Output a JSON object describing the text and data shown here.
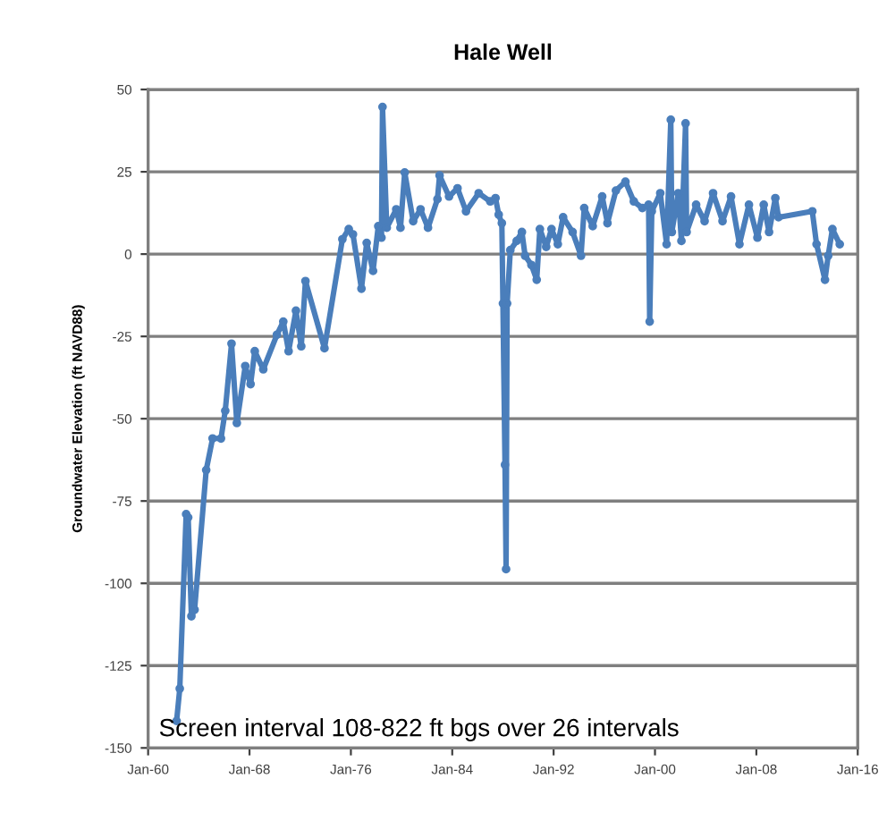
{
  "chart_data": {
    "type": "line",
    "title": "Hale Well",
    "ylabel": "Groundwater Elevation (ft NAVD88)",
    "annotations": [
      "Screen interval 108-822 ft bgs over 26 intervals"
    ],
    "x": [
      "1962-04",
      "1962-07",
      "1963-01",
      "1963-03",
      "1963-06",
      "1963-09",
      "1964-08",
      "1965-02",
      "1965-10",
      "1966-02",
      "1966-08",
      "1967-01",
      "1967-09",
      "1968-02",
      "1968-06",
      "1969-02",
      "1970-03",
      "1970-09",
      "1971-02",
      "1971-09",
      "1972-02",
      "1972-06",
      "1973-12",
      "1975-05",
      "1975-11",
      "1976-03",
      "1976-11",
      "1977-04",
      "1977-10",
      "1978-03",
      "1978-06",
      "1978-07",
      "1978-11",
      "1979-08",
      "1979-12",
      "1980-04",
      "1980-12",
      "1981-07",
      "1982-02",
      "1982-11",
      "1983-01",
      "1983-10",
      "1984-06",
      "1985-02",
      "1986-02",
      "1987-01",
      "1987-06",
      "1987-09",
      "1987-12",
      "1988-01",
      "1988-03",
      "1988-04",
      "1988-05",
      "1988-08",
      "1989-02",
      "1989-07",
      "1989-10",
      "1990-04",
      "1990-09",
      "1990-12",
      "1991-06",
      "1991-11",
      "1992-05",
      "1992-10",
      "1993-07",
      "1994-03",
      "1994-06",
      "1995-02",
      "1995-11",
      "1996-04",
      "1996-12",
      "1997-09",
      "1998-05",
      "1999-01",
      "1999-07",
      "1999-08",
      "1999-10",
      "2000-06",
      "2000-12",
      "2001-04",
      "2001-05",
      "2001-11",
      "2002-02",
      "2002-06",
      "2002-07",
      "2003-04",
      "2003-12",
      "2004-08",
      "2005-05",
      "2006-01",
      "2006-09",
      "2007-06",
      "2008-02",
      "2008-08",
      "2009-01",
      "2009-07",
      "2009-10",
      "2012-06",
      "2012-10",
      "2013-06",
      "2013-09",
      "2014-01",
      "2014-08"
    ],
    "series": [
      {
        "color": "#4a7ebb",
        "values": [
          -141.8,
          -132,
          -79,
          -80,
          -110,
          -108,
          -65.6,
          -56,
          -56,
          -47.6,
          -27.2,
          -51.3,
          -34,
          -39.5,
          -29.5,
          -35,
          -24.5,
          -20.5,
          -29.5,
          -17.2,
          -28,
          -8.2,
          -28.6,
          4.5,
          7.6,
          6,
          -10.5,
          3.4,
          -5.1,
          8.5,
          5,
          44.7,
          8,
          13.6,
          8,
          24.8,
          10,
          13.6,
          8,
          16.7,
          23.9,
          17.5,
          20,
          13,
          18.5,
          16,
          17,
          12,
          9.4,
          -15,
          -64,
          -95.7,
          -15,
          1.2,
          4,
          6.7,
          -0.5,
          -3.3,
          -7.8,
          7.6,
          2.2,
          7.6,
          3,
          11.2,
          6.7,
          -0.5,
          14,
          8.5,
          17.5,
          9.4,
          19.3,
          22,
          16,
          14,
          15,
          -20.5,
          13,
          18.5,
          3,
          40.8,
          6.7,
          18.5,
          4,
          39.7,
          6.7,
          15,
          10,
          18.5,
          10,
          17.5,
          3,
          15,
          5,
          15,
          6.7,
          17,
          11.2,
          13,
          3,
          -7.8,
          -0.5,
          7.6,
          3
        ]
      }
    ],
    "xlim": [
      "1960-01",
      "2016-01"
    ],
    "xticks": [
      {
        "value": "1960-01",
        "label": "Jan-60"
      },
      {
        "value": "1968-01",
        "label": "Jan-68"
      },
      {
        "value": "1976-01",
        "label": "Jan-76"
      },
      {
        "value": "1984-01",
        "label": "Jan-84"
      },
      {
        "value": "1992-01",
        "label": "Jan-92"
      },
      {
        "value": "2000-01",
        "label": "Jan-00"
      },
      {
        "value": "2008-01",
        "label": "Jan-08"
      },
      {
        "value": "2016-01",
        "label": "Jan-16"
      }
    ],
    "ylim": [
      -150,
      50
    ],
    "yticks": [
      -150,
      -125,
      -100,
      -75,
      -50,
      -25,
      0,
      25,
      50
    ],
    "grid": "y",
    "marker": "circle",
    "line_style": "solid"
  }
}
